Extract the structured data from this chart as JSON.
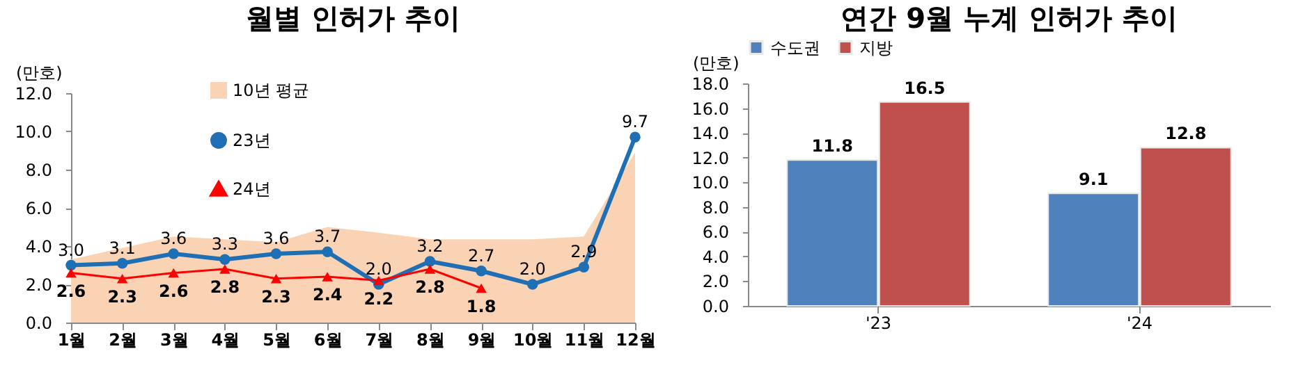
{
  "chart_data": [
    {
      "type": "line",
      "title": "월별 인허가 추이",
      "ylabel": "(만호)",
      "categories": [
        "1월",
        "2월",
        "3월",
        "4월",
        "5월",
        "6월",
        "7월",
        "8월",
        "9월",
        "10월",
        "11월",
        "12월"
      ],
      "ylim": [
        0,
        12
      ],
      "yticks": [
        {
          "value": 0,
          "label": "0.0"
        },
        {
          "value": 2,
          "label": "2.0"
        },
        {
          "value": 4,
          "label": "4.0"
        },
        {
          "value": 6,
          "label": "6.0"
        },
        {
          "value": 8,
          "label": "8.0"
        },
        {
          "value": 10,
          "label": "10.0"
        },
        {
          "value": 12,
          "label": "12.0"
        }
      ],
      "legend": "top left",
      "series": [
        {
          "name": "10년 평균",
          "type": "area",
          "color": "#fad3b4",
          "values": [
            3.3,
            3.9,
            4.5,
            4.35,
            4.2,
            5.0,
            4.7,
            4.35,
            4.35,
            4.35,
            4.5,
            8.9
          ]
        },
        {
          "name": "23년",
          "type": "line",
          "color": "#1f6fb5",
          "marker": "circle",
          "values": [
            3.0,
            3.1,
            3.6,
            3.3,
            3.6,
            3.7,
            2.0,
            3.2,
            2.7,
            2.0,
            2.9,
            9.7
          ],
          "value_labels": [
            "3.0",
            "3.1",
            "3.6",
            "3.3",
            "3.6",
            "3.7",
            "2.0",
            "3.2",
            "2.7",
            "2.0",
            "2.9",
            "9.7"
          ]
        },
        {
          "name": "24년",
          "type": "line",
          "color": "#ff0000",
          "marker": "triangle",
          "values": [
            2.6,
            2.3,
            2.6,
            2.8,
            2.3,
            2.4,
            2.2,
            2.8,
            1.8,
            null,
            null,
            null
          ],
          "value_labels": [
            "2.6",
            "2.3",
            "2.6",
            "2.8",
            "2.3",
            "2.4",
            "2.2",
            "2.8",
            "1.8",
            null,
            null,
            null
          ]
        }
      ]
    },
    {
      "type": "bar",
      "title": "연간 9월 누계 인허가 추이",
      "ylabel": "(만호)",
      "categories": [
        "'23",
        "'24"
      ],
      "ylim": [
        0,
        18
      ],
      "yticks": [
        {
          "value": 0,
          "label": "0.0"
        },
        {
          "value": 2,
          "label": "2.0"
        },
        {
          "value": 4,
          "label": "4.0"
        },
        {
          "value": 6,
          "label": "6.0"
        },
        {
          "value": 8,
          "label": "8.0"
        },
        {
          "value": 10,
          "label": "10.0"
        },
        {
          "value": 12,
          "label": "12.0"
        },
        {
          "value": 14,
          "label": "14.0"
        },
        {
          "value": 16,
          "label": "16.0"
        },
        {
          "value": 18,
          "label": "18.0"
        }
      ],
      "legend": "top",
      "data_labels": true,
      "series": [
        {
          "name": "수도권",
          "color": "#4f81bd",
          "values": [
            11.8,
            9.1
          ]
        },
        {
          "name": "지방",
          "color": "#c0504d",
          "values": [
            16.5,
            12.8
          ]
        }
      ]
    }
  ]
}
